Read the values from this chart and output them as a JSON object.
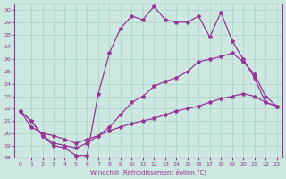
{
  "xlabel": "Windchill (Refroidissement éolien,°C)",
  "bg_color": "#cce8e0",
  "grid_color": "#aad4c8",
  "line_color": "#993399",
  "xlim_min": -0.5,
  "xlim_max": 23.5,
  "ylim_min": 18,
  "ylim_max": 30.5,
  "xticks": [
    0,
    1,
    2,
    3,
    4,
    5,
    6,
    7,
    8,
    9,
    10,
    11,
    12,
    13,
    14,
    15,
    16,
    17,
    18,
    19,
    20,
    21,
    22,
    23
  ],
  "yticks": [
    18,
    19,
    20,
    21,
    22,
    23,
    24,
    25,
    26,
    27,
    28,
    29,
    30
  ],
  "line1_x": [
    0,
    1,
    2,
    3,
    4,
    5,
    6,
    7,
    8,
    9,
    10,
    11,
    12,
    13,
    14,
    15,
    16,
    17,
    18,
    19,
    20,
    21,
    22,
    23
  ],
  "line1_y": [
    21.8,
    21.0,
    19.8,
    19.0,
    18.8,
    18.2,
    18.2,
    23.2,
    26.5,
    28.5,
    29.5,
    29.2,
    30.3,
    29.2,
    29.0,
    29.0,
    29.5,
    27.8,
    29.8,
    27.5,
    26.0,
    24.5,
    22.5,
    22.2
  ],
  "line2_x": [
    0,
    1,
    2,
    3,
    4,
    5,
    6,
    7,
    8,
    9,
    10,
    11,
    12,
    13,
    14,
    15,
    16,
    17,
    18,
    19,
    20,
    21,
    22,
    23
  ],
  "line2_y": [
    21.8,
    21.0,
    19.8,
    19.2,
    19.0,
    18.8,
    19.2,
    19.8,
    20.5,
    21.5,
    22.5,
    23.0,
    23.8,
    24.2,
    24.5,
    25.0,
    25.8,
    26.0,
    26.2,
    26.5,
    25.8,
    24.8,
    23.0,
    22.2
  ],
  "line3_x": [
    0,
    1,
    2,
    3,
    4,
    5,
    6,
    7,
    8,
    9,
    10,
    11,
    12,
    13,
    14,
    15,
    16,
    17,
    18,
    19,
    20,
    21,
    22,
    23
  ],
  "line3_y": [
    21.8,
    20.5,
    20.0,
    19.8,
    19.5,
    19.2,
    19.5,
    19.8,
    20.2,
    20.5,
    20.8,
    21.0,
    21.2,
    21.5,
    21.8,
    22.0,
    22.2,
    22.5,
    22.8,
    23.0,
    23.2,
    23.0,
    22.5,
    22.2
  ],
  "marker": "*",
  "marker_size": 3,
  "linewidth": 0.9
}
